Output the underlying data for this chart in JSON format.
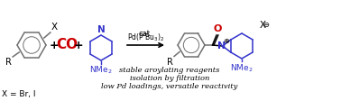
{
  "background_color": "#ffffff",
  "ring_color": "#707070",
  "co_color": "#ff0000",
  "blue_color": "#3333cc",
  "black_color": "#000000",
  "red_color": "#cc0000",
  "bullet1": "stable aroylating reagents",
  "bullet2": "isolation by filtration",
  "bullet3": "low Pd loadings, versatile reactivity",
  "figsize": [
    3.78,
    1.22
  ],
  "dpi": 100
}
